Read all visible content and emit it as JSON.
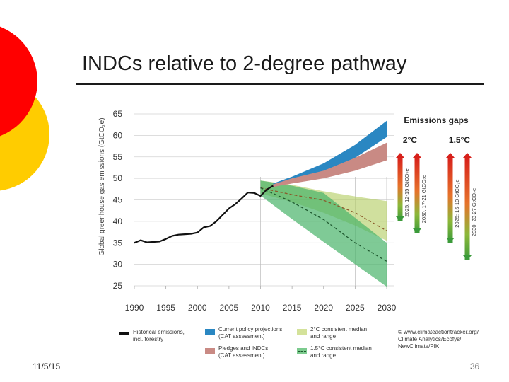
{
  "slide": {
    "title": "INDCs relative to 2-degree pathway",
    "date": "11/5/15",
    "page_number": "36"
  },
  "chart_data": {
    "type": "area",
    "xlabel": "",
    "ylabel": "Global greenhouse gas emissions (GtCO₂e)",
    "xlim": [
      1990,
      2030
    ],
    "ylim": [
      25,
      65
    ],
    "x_ticks": [
      "1990",
      "1995",
      "2000",
      "2005",
      "2010",
      "2015",
      "2020",
      "2025",
      "2030"
    ],
    "y_ticks": [
      "25",
      "30",
      "35",
      "40",
      "45",
      "50",
      "55",
      "60",
      "65"
    ],
    "grid": true,
    "legend_position": "bottom",
    "series": [
      {
        "name": "Historical emissions, incl. forestry",
        "type": "line",
        "color": "#111111",
        "x": [
          1990,
          1991,
          1992,
          1993,
          1994,
          1995,
          1996,
          1997,
          1998,
          1999,
          2000,
          2001,
          2002,
          2003,
          2004,
          2005,
          2006,
          2007,
          2008,
          2009,
          2010,
          2011,
          2012
        ],
        "y": [
          35,
          35.6,
          35.1,
          35.2,
          35.3,
          35.9,
          36.6,
          36.9,
          37,
          37.1,
          37.4,
          38.6,
          38.9,
          40,
          41.5,
          43,
          44,
          45.3,
          46.7,
          46.6,
          45.9,
          47.4,
          48.3
        ]
      },
      {
        "name": "Current policy projections (CAT assessment)",
        "type": "band",
        "color": "#2a87c2",
        "x": [
          2012,
          2015,
          2020,
          2025,
          2030
        ],
        "upper": [
          48.8,
          50.4,
          53.5,
          57.8,
          63.4
        ],
        "lower": [
          48.2,
          49.5,
          51.2,
          54.8,
          59.6
        ]
      },
      {
        "name": "Pledges and INDCs (CAT assessment)",
        "type": "band",
        "color": "#c98a84",
        "x": [
          2012,
          2015,
          2020,
          2025,
          2030
        ],
        "upper": [
          48.6,
          50.0,
          51.8,
          54.8,
          58.3
        ],
        "lower": [
          48.0,
          48.8,
          50.0,
          51.8,
          54.2
        ]
      },
      {
        "name": "2°C consistent median and range",
        "type": "band",
        "color": "#b7cf6a",
        "x": [
          2010,
          2015,
          2020,
          2025,
          2030
        ],
        "upper": [
          49.5,
          48.5,
          47.0,
          45.8,
          44.7
        ],
        "median": [
          47.8,
          46.2,
          44.9,
          42.0,
          37.8
        ],
        "lower": [
          46.5,
          44.5,
          42.0,
          39.0,
          35.5
        ]
      },
      {
        "name": "1.5°C consistent median and range",
        "type": "band",
        "color": "#48b46a",
        "x": [
          2010,
          2015,
          2020,
          2025,
          2030
        ],
        "upper": [
          49.5,
          48.3,
          46.6,
          40.8,
          35.0
        ],
        "median": [
          47.8,
          44.5,
          40.4,
          35.0,
          30.7
        ],
        "lower": [
          46.0,
          40.5,
          35.2,
          30.0,
          24.8
        ]
      }
    ],
    "emissions_gaps": {
      "title": "Emissions gaps",
      "groups": [
        {
          "label": "2°C",
          "bars": [
            {
              "label": "2025: 12-15 GtCO₂e"
            },
            {
              "label": "2030: 17-21 GtCO₂e"
            }
          ]
        },
        {
          "label": "1.5°C",
          "bars": [
            {
              "label": "2025: 15-19 GtCO₂e"
            },
            {
              "label": "2030: 23-27 GtCO₂e"
            }
          ]
        }
      ]
    },
    "legend": [
      {
        "label": "Historical emissions,\nincl. forestry"
      },
      {
        "label": "Current policy projections\n(CAT assessment)"
      },
      {
        "label": "Pledges and INDCs\n(CAT assessment)"
      },
      {
        "label": "2°C consistent median\nand range"
      },
      {
        "label": "1.5°C consistent median\nand range"
      }
    ],
    "source": "© www.climateactiontracker.org/\nClimate Analytics/Ecofys/\nNewClimate/PIK"
  }
}
